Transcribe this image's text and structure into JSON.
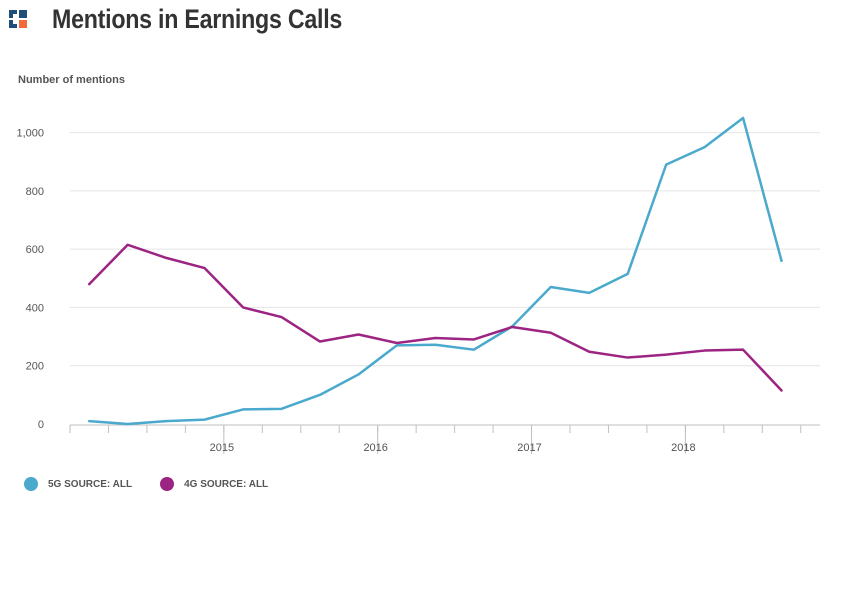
{
  "header": {
    "title": "Mentions in Earnings Calls",
    "logo_icon": "brand-logo-icon"
  },
  "chart_data": {
    "type": "line",
    "title": "Mentions in Earnings Calls",
    "ylabel": "Number of mentions",
    "xlabel": "",
    "ylim": [
      0,
      1050
    ],
    "y_ticks": [
      0,
      200,
      400,
      600,
      800,
      1000
    ],
    "y_tick_labels": [
      "0",
      "200",
      "400",
      "600",
      "800",
      "1,000"
    ],
    "x": [
      0,
      1,
      2,
      3,
      4,
      5,
      6,
      7,
      8,
      9,
      10,
      11,
      12,
      13,
      14,
      15,
      16,
      17,
      18
    ],
    "xlim": [
      -0.5,
      19.0
    ],
    "x_tick_positions": [
      -0.5,
      0.5,
      1.5,
      2.5,
      3.5,
      4.5,
      5.5,
      6.5,
      7.5,
      8.5,
      9.5,
      10.5,
      11.5,
      12.5,
      13.5,
      14.5,
      15.5,
      16.5,
      17.5,
      18.5
    ],
    "x_major_positions": [
      3.5,
      7.5,
      11.5,
      15.5
    ],
    "year_labels": [
      {
        "label": "2015",
        "x": 3.5
      },
      {
        "label": "2016",
        "x": 7.5
      },
      {
        "label": "2017",
        "x": 11.5
      },
      {
        "label": "2018",
        "x": 15.5
      }
    ],
    "series": [
      {
        "name": "5G SOURCE: ALL",
        "color": "#4aa9cc",
        "values": [
          10,
          0,
          10,
          15,
          50,
          52,
          100,
          170,
          270,
          272,
          255,
          335,
          470,
          450,
          515,
          890,
          950,
          1050,
          560
        ]
      },
      {
        "name": "4G SOURCE: ALL",
        "color": "#9c2482",
        "values": [
          480,
          615,
          570,
          535,
          400,
          367,
          283,
          307,
          278,
          295,
          290,
          333,
          313,
          248,
          228,
          238,
          252,
          255,
          115
        ]
      }
    ],
    "grid": true,
    "legend_position": "bottom-left"
  },
  "legend": {
    "items": [
      {
        "label": "5G SOURCE: ALL",
        "color": "#4aa9cc"
      },
      {
        "label": "4G SOURCE: ALL",
        "color": "#9c2482"
      }
    ]
  }
}
